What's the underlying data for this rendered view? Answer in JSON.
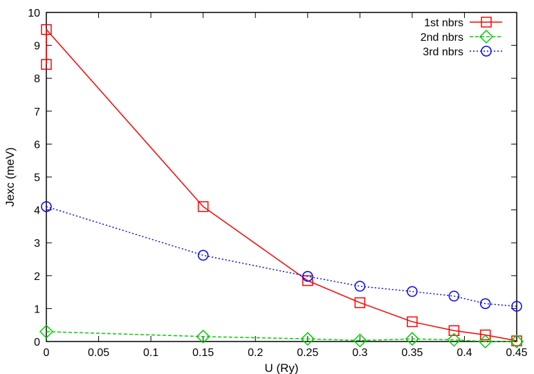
{
  "chart_data": {
    "type": "line",
    "title": "",
    "xlabel": "U (Ry)",
    "ylabel": "Jexc (meV)",
    "xlim": [
      0,
      0.45
    ],
    "ylim": [
      0,
      10
    ],
    "x_ticks": [
      "0",
      "0.05",
      "0.1",
      "0.15",
      "0.2",
      "0.25",
      "0.3",
      "0.35",
      "0.4",
      "0.45"
    ],
    "y_ticks": [
      "0",
      "1",
      "2",
      "3",
      "4",
      "5",
      "6",
      "7",
      "8",
      "9",
      "10"
    ],
    "legend_position": "top-right",
    "grid": false,
    "series": [
      {
        "name": "1st nbrs",
        "color": "#ff0000",
        "marker": "square",
        "line": "solid",
        "points": [
          [
            0,
            8.42
          ],
          [
            0,
            9.48
          ],
          [
            0.15,
            4.1
          ],
          [
            0.25,
            1.85
          ],
          [
            0.3,
            1.18
          ],
          [
            0.35,
            0.6
          ],
          [
            0.39,
            0.33
          ],
          [
            0.42,
            0.2
          ],
          [
            0.45,
            0.02
          ]
        ]
      },
      {
        "name": "2nd nbrs",
        "color": "#00cc00",
        "marker": "diamond",
        "line": "dashed",
        "points": [
          [
            0,
            0.3
          ],
          [
            0.15,
            0.15
          ],
          [
            0.25,
            0.08
          ],
          [
            0.3,
            0.03
          ],
          [
            0.35,
            0.08
          ],
          [
            0.39,
            0.05
          ],
          [
            0.42,
            0.0
          ],
          [
            0.45,
            0.0
          ]
        ]
      },
      {
        "name": "3rd nbrs",
        "color": "#0000ff",
        "marker": "circle",
        "line": "dotted",
        "points": [
          [
            0,
            4.1
          ],
          [
            0.15,
            2.62
          ],
          [
            0.25,
            1.98
          ],
          [
            0.3,
            1.68
          ],
          [
            0.35,
            1.52
          ],
          [
            0.39,
            1.38
          ],
          [
            0.42,
            1.15
          ],
          [
            0.45,
            1.07
          ]
        ]
      }
    ]
  }
}
